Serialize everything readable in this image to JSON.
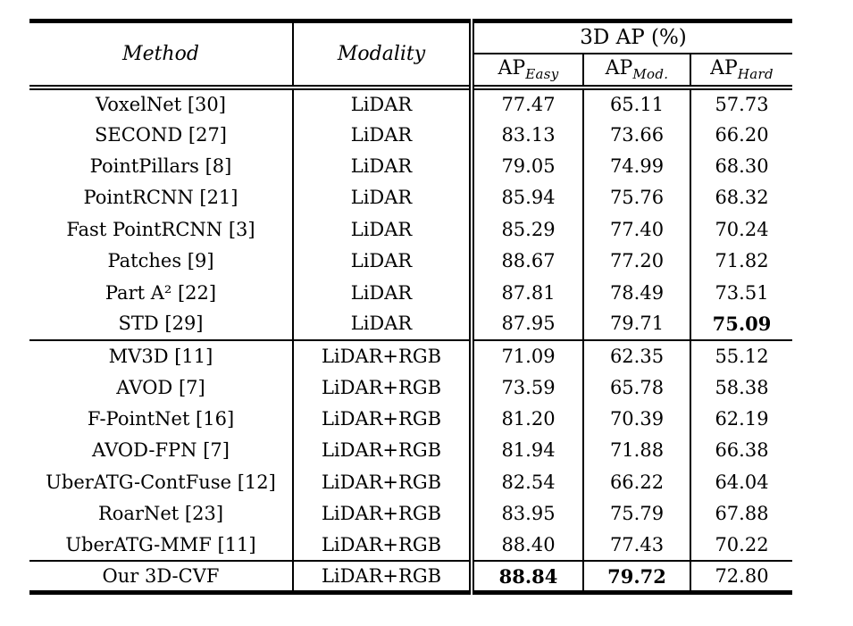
{
  "table": {
    "header": {
      "method": "Method",
      "modality": "Modality",
      "group": "3D AP (%)",
      "subcols": [
        {
          "base": "AP",
          "sub": "Easy"
        },
        {
          "base": "AP",
          "sub": "Mod."
        },
        {
          "base": "AP",
          "sub": "Hard"
        }
      ]
    },
    "rows": [
      {
        "method": "VoxelNet [30]",
        "modality": "LiDAR",
        "easy": "77.47",
        "mod": "65.11",
        "hard": "57.73",
        "bold": []
      },
      {
        "method": "SECOND [27]",
        "modality": "LiDAR",
        "easy": "83.13",
        "mod": "73.66",
        "hard": "66.20",
        "bold": []
      },
      {
        "method": "PointPillars [8]",
        "modality": "LiDAR",
        "easy": "79.05",
        "mod": "74.99",
        "hard": "68.30",
        "bold": []
      },
      {
        "method": "PointRCNN [21]",
        "modality": "LiDAR",
        "easy": "85.94",
        "mod": "75.76",
        "hard": "68.32",
        "bold": []
      },
      {
        "method": "Fast PointRCNN [3]",
        "modality": "LiDAR",
        "easy": "85.29",
        "mod": "77.40",
        "hard": "70.24",
        "bold": []
      },
      {
        "method": "Patches [9]",
        "modality": "LiDAR",
        "easy": "88.67",
        "mod": "77.20",
        "hard": "71.82",
        "bold": []
      },
      {
        "method": "Part A² [22]",
        "modality": "LiDAR",
        "easy": "87.81",
        "mod": "78.49",
        "hard": "73.51",
        "bold": []
      },
      {
        "method": "STD [29]",
        "modality": "LiDAR",
        "easy": "87.95",
        "mod": "79.71",
        "hard": "75.09",
        "bold": [
          "hard"
        ]
      },
      {
        "method": "MV3D [11]",
        "modality": "LiDAR+RGB",
        "easy": "71.09",
        "mod": "62.35",
        "hard": "55.12",
        "bold": [],
        "rule_above": true
      },
      {
        "method": "AVOD [7]",
        "modality": "LiDAR+RGB",
        "easy": "73.59",
        "mod": "65.78",
        "hard": "58.38",
        "bold": []
      },
      {
        "method": "F-PointNet [16]",
        "modality": "LiDAR+RGB",
        "easy": "81.20",
        "mod": "70.39",
        "hard": "62.19",
        "bold": []
      },
      {
        "method": "AVOD-FPN [7]",
        "modality": "LiDAR+RGB",
        "easy": "81.94",
        "mod": "71.88",
        "hard": "66.38",
        "bold": []
      },
      {
        "method": "UberATG-ContFuse [12]",
        "modality": "LiDAR+RGB",
        "easy": "82.54",
        "mod": "66.22",
        "hard": "64.04",
        "bold": []
      },
      {
        "method": "RoarNet [23]",
        "modality": "LiDAR+RGB",
        "easy": "83.95",
        "mod": "75.79",
        "hard": "67.88",
        "bold": []
      },
      {
        "method": "UberATG-MMF [11]",
        "modality": "LiDAR+RGB",
        "easy": "88.40",
        "mod": "77.43",
        "hard": "70.22",
        "bold": []
      },
      {
        "method": "Our 3D-CVF",
        "modality": "LiDAR+RGB",
        "easy": "88.84",
        "mod": "79.72",
        "hard": "72.80",
        "bold": [
          "easy",
          "mod"
        ],
        "rule_above": true
      }
    ]
  }
}
